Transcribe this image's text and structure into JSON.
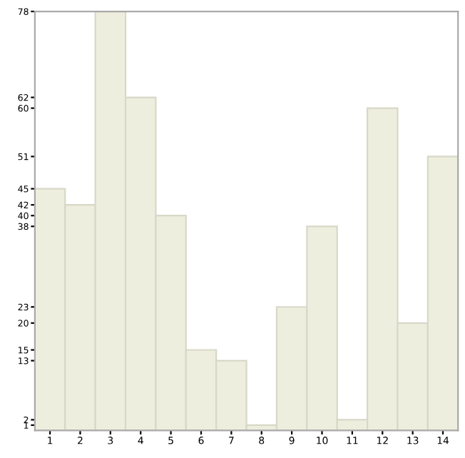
{
  "chart_data": {
    "type": "bar",
    "categories": [
      "1",
      "2",
      "3",
      "4",
      "5",
      "6",
      "7",
      "8",
      "9",
      "10",
      "11",
      "12",
      "13",
      "14"
    ],
    "values": [
      45,
      42,
      78,
      62,
      40,
      15,
      13,
      1,
      23,
      38,
      2,
      60,
      20,
      51
    ],
    "color": "#eeeedf",
    "ylim": [
      0,
      78
    ],
    "yticks": [
      1,
      2,
      13,
      15,
      20,
      23,
      38,
      40,
      42,
      45,
      51,
      60,
      62,
      78
    ],
    "grid": false
  }
}
